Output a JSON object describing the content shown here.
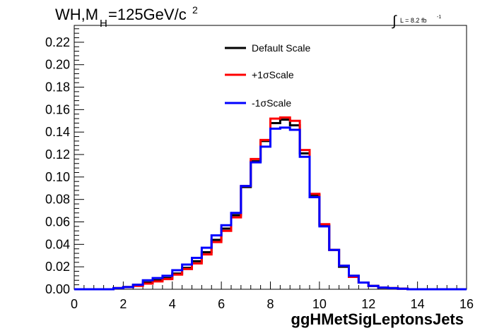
{
  "chart_data": {
    "type": "line",
    "title": {
      "main": "WH,M",
      "sub": "H",
      "rest": "=125GeV/c",
      "sup": "2"
    },
    "lumi": {
      "symbol": "∫",
      "text": "L = 8.2 fb",
      "sup": "-1"
    },
    "xlabel": "ggHMetSigLeptonsJets",
    "ylabel": "",
    "xlim": [
      0,
      16
    ],
    "ylim": [
      0,
      0.235
    ],
    "xticks": [
      "0",
      "2",
      "4",
      "6",
      "8",
      "10",
      "12",
      "14",
      "16"
    ],
    "yticks": [
      "0.00",
      "0.02",
      "0.04",
      "0.06",
      "0.08",
      "0.10",
      "0.12",
      "0.14",
      "0.16",
      "0.18",
      "0.20",
      "0.22"
    ],
    "bin_edges": [
      0.0,
      0.4,
      0.8,
      1.2,
      1.6,
      2.0,
      2.4,
      2.8,
      3.2,
      3.6,
      4.0,
      4.4,
      4.8,
      5.2,
      5.6,
      6.0,
      6.4,
      6.8,
      7.2,
      7.6,
      8.0,
      8.4,
      8.8,
      9.2,
      9.6,
      10.0,
      10.4,
      10.8,
      11.2,
      11.6,
      12.0,
      12.4,
      12.8,
      13.2,
      13.6,
      14.0,
      14.4,
      14.8,
      15.2,
      15.6,
      16.0
    ],
    "legend_position": "top-center",
    "series": [
      {
        "name": "Default Scale",
        "color": "#000000",
        "values": [
          0,
          0,
          0,
          0,
          0.001,
          0.002,
          0.004,
          0.006,
          0.008,
          0.01,
          0.014,
          0.019,
          0.025,
          0.033,
          0.044,
          0.054,
          0.066,
          0.091,
          0.114,
          0.132,
          0.148,
          0.151,
          0.146,
          0.121,
          0.084,
          0.057,
          0.035,
          0.02,
          0.012,
          0.006,
          0.003,
          0.0015,
          0.001,
          0.0005,
          0,
          0,
          0,
          0,
          0,
          0
        ]
      },
      {
        "name": "+1σScale",
        "color": "#ff0000",
        "values": [
          0,
          0,
          0,
          0,
          0.001,
          0.002,
          0.003,
          0.005,
          0.007,
          0.009,
          0.013,
          0.018,
          0.023,
          0.031,
          0.042,
          0.052,
          0.064,
          0.092,
          0.116,
          0.133,
          0.152,
          0.153,
          0.15,
          0.124,
          0.085,
          0.058,
          0.035,
          0.021,
          0.011,
          0.006,
          0.003,
          0.0015,
          0.001,
          0.0005,
          0,
          0,
          0,
          0,
          0,
          0
        ]
      },
      {
        "name": "-1σScale",
        "color": "#0000ff",
        "values": [
          0,
          0,
          0,
          0,
          0.001,
          0.002,
          0.004,
          0.008,
          0.01,
          0.012,
          0.017,
          0.022,
          0.028,
          0.037,
          0.048,
          0.057,
          0.068,
          0.092,
          0.113,
          0.127,
          0.143,
          0.144,
          0.142,
          0.118,
          0.082,
          0.056,
          0.035,
          0.021,
          0.012,
          0.006,
          0.003,
          0.0015,
          0.001,
          0.0005,
          0,
          0,
          0,
          0,
          0,
          0
        ]
      }
    ]
  }
}
